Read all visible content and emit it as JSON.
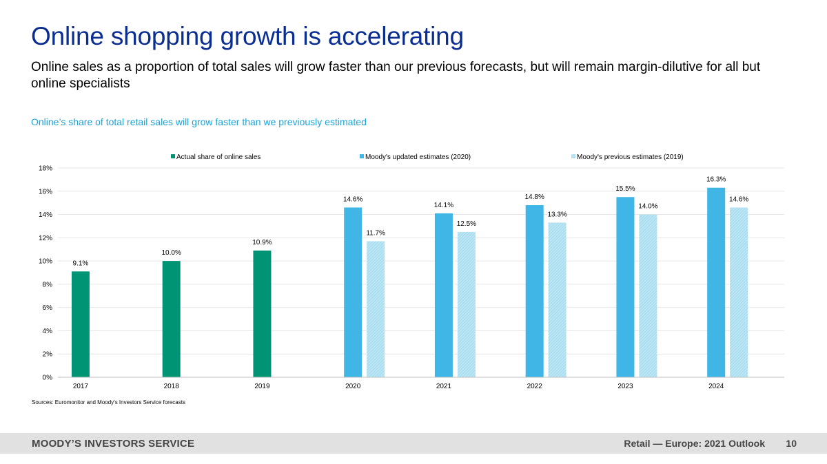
{
  "slide": {
    "title": "Online shopping growth is accelerating",
    "subtitle": "Online sales as a proportion of total sales will grow faster than our previous forecasts, but will remain margin-dilutive for all but online specialists",
    "chart_caption": "Online’s share of total retail sales will grow faster than we previously estimated",
    "source": "Sources: Euromonitor and Moody's Investors Service forecasts"
  },
  "footer": {
    "brand": "MOODY’S INVESTORS SERVICE",
    "report": "Retail — Europe: 2021 Outlook",
    "page": "10"
  },
  "colors": {
    "actual": "#009474",
    "updated": "#3fb6e6",
    "previous": "#a7dcef",
    "grid": "#e6e6e6",
    "axis": "#bfbfbf"
  },
  "chart_data": {
    "type": "bar",
    "title": "",
    "xlabel": "",
    "ylabel": "",
    "ylim": [
      0,
      18
    ],
    "yticks": [
      "0%",
      "2%",
      "4%",
      "6%",
      "8%",
      "10%",
      "12%",
      "14%",
      "16%",
      "18%"
    ],
    "ytick_values": [
      0,
      2,
      4,
      6,
      8,
      10,
      12,
      14,
      16,
      18
    ],
    "grid": true,
    "legend_position": "top",
    "categories": [
      "2017",
      "2018",
      "2019",
      "2020",
      "2021",
      "2022",
      "2023",
      "2024"
    ],
    "series": [
      {
        "name": "Actual share of online sales",
        "color_key": "actual",
        "values": [
          9.1,
          10.0,
          10.9,
          null,
          null,
          null,
          null,
          null
        ],
        "labels": [
          "9.1%",
          "10.0%",
          "10.9%",
          null,
          null,
          null,
          null,
          null
        ]
      },
      {
        "name": "Moody's updated estimates (2020)",
        "color_key": "updated",
        "values": [
          null,
          null,
          null,
          14.6,
          14.1,
          14.8,
          15.5,
          16.3
        ],
        "labels": [
          null,
          null,
          null,
          "14.6%",
          "14.1%",
          "14.8%",
          "15.5%",
          "16.3%"
        ]
      },
      {
        "name": "Moody's previous estimates (2019)",
        "color_key": "previous",
        "hatched": true,
        "values": [
          null,
          null,
          null,
          11.7,
          12.5,
          13.3,
          14.0,
          14.6
        ],
        "labels": [
          null,
          null,
          null,
          "11.7%",
          "12.5%",
          "13.3%",
          "14.0%",
          "14.6%"
        ]
      }
    ]
  }
}
